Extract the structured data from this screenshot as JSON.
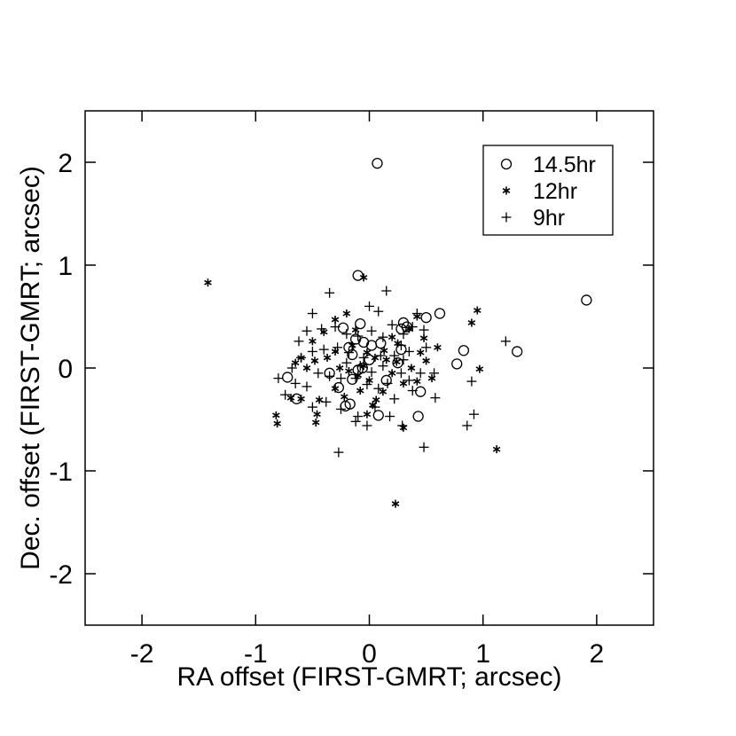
{
  "chart_data": {
    "type": "scatter",
    "xlabel": "RA offset (FIRST-GMRT; arcsec)",
    "ylabel": "Dec. offset (FIRST-GMRT; arcsec)",
    "xlim": [
      -2.5,
      2.5
    ],
    "ylim": [
      -2.5,
      2.5
    ],
    "xticks": [
      -2,
      -1,
      0,
      1,
      2
    ],
    "yticks": [
      -2,
      -1,
      0,
      1,
      2
    ],
    "xtick_labels": [
      "-2",
      "-1",
      "0",
      "1",
      "2"
    ],
    "ytick_labels": [
      "-2",
      "-1",
      "0",
      "1",
      "2"
    ],
    "grid": false,
    "legend_position": "top-right",
    "series": [
      {
        "name": "14.5hr",
        "marker": "circle",
        "points": [
          [
            0.07,
            1.99
          ],
          [
            -0.1,
            0.9
          ],
          [
            1.91,
            0.66
          ],
          [
            0.62,
            0.53
          ],
          [
            0.5,
            0.49
          ],
          [
            0.3,
            0.44
          ],
          [
            0.28,
            0.38
          ],
          [
            0.33,
            0.4
          ],
          [
            -0.23,
            0.39
          ],
          [
            -0.08,
            0.43
          ],
          [
            1.3,
            0.16
          ],
          [
            0.83,
            0.17
          ],
          [
            0.77,
            0.04
          ],
          [
            0.28,
            0.18
          ],
          [
            0.25,
            0.05
          ],
          [
            0.1,
            0.24
          ],
          [
            0.02,
            0.22
          ],
          [
            -0.05,
            0.25
          ],
          [
            -0.12,
            0.28
          ],
          [
            -0.18,
            0.2
          ],
          [
            -0.15,
            0.13
          ],
          [
            -0.06,
            0.0
          ],
          [
            -0.1,
            -0.02
          ],
          [
            -0.35,
            -0.05
          ],
          [
            -0.72,
            -0.09
          ],
          [
            -0.64,
            -0.3
          ],
          [
            -0.27,
            -0.19
          ],
          [
            -0.15,
            -0.11
          ],
          [
            -0.17,
            -0.35
          ],
          [
            -0.21,
            -0.37
          ],
          [
            0.08,
            -0.46
          ],
          [
            0.43,
            -0.47
          ],
          [
            0.45,
            -0.23
          ],
          [
            0.15,
            -0.12
          ],
          [
            0.0,
            0.08
          ]
        ]
      },
      {
        "name": "12hr",
        "marker": "asterisk",
        "points": [
          [
            -1.42,
            0.83
          ],
          [
            -0.05,
            0.88
          ],
          [
            0.95,
            0.56
          ],
          [
            0.9,
            0.44
          ],
          [
            0.48,
            0.29
          ],
          [
            0.42,
            0.5
          ],
          [
            0.35,
            0.38
          ],
          [
            0.2,
            0.3
          ],
          [
            0.13,
            0.17
          ],
          [
            -0.02,
            0.15
          ],
          [
            -0.12,
            0.37
          ],
          [
            -0.2,
            0.53
          ],
          [
            -0.3,
            0.47
          ],
          [
            -0.4,
            0.35
          ],
          [
            -0.5,
            0.26
          ],
          [
            -0.6,
            0.1
          ],
          [
            -0.48,
            0.07
          ],
          [
            -0.37,
            0.1
          ],
          [
            -0.26,
            0.0
          ],
          [
            -0.18,
            -0.03
          ],
          [
            -0.1,
            -0.07
          ],
          [
            -0.05,
            0.02
          ],
          [
            0.05,
            0.1
          ],
          [
            0.15,
            0.08
          ],
          [
            0.24,
            0.06
          ],
          [
            0.37,
            0.0
          ],
          [
            0.5,
            0.07
          ],
          [
            0.97,
            -0.01
          ],
          [
            0.42,
            -0.13
          ],
          [
            0.3,
            -0.15
          ],
          [
            0.12,
            -0.23
          ],
          [
            0.06,
            -0.31
          ],
          [
            0.03,
            -0.36
          ],
          [
            -0.08,
            -0.22
          ],
          [
            -0.22,
            -0.28
          ],
          [
            -0.3,
            -0.2
          ],
          [
            -0.44,
            -0.31
          ],
          [
            -0.46,
            -0.45
          ],
          [
            -0.47,
            -0.53
          ],
          [
            -0.6,
            -0.3
          ],
          [
            -0.69,
            -0.29
          ],
          [
            -0.82,
            -0.46
          ],
          [
            -0.81,
            -0.54
          ],
          [
            -0.65,
            0.05
          ],
          [
            -0.55,
            0.0
          ],
          [
            -0.3,
            0.16
          ],
          [
            -0.15,
            0.22
          ],
          [
            0.25,
            0.24
          ],
          [
            0.45,
            0.15
          ],
          [
            0.3,
            -0.58
          ],
          [
            0.23,
            -1.32
          ],
          [
            1.12,
            -0.79
          ],
          [
            0.0,
            -0.12
          ],
          [
            0.2,
            -0.05
          ],
          [
            -0.02,
            -0.45
          ],
          [
            0.55,
            -0.1
          ],
          [
            0.6,
            0.2
          ]
        ]
      },
      {
        "name": "9hr",
        "marker": "plus",
        "points": [
          [
            0.15,
            0.75
          ],
          [
            -0.35,
            0.73
          ],
          [
            0.0,
            0.6
          ],
          [
            0.08,
            0.55
          ],
          [
            0.42,
            0.53
          ],
          [
            -0.5,
            0.53
          ],
          [
            -0.55,
            0.36
          ],
          [
            -0.62,
            0.26
          ],
          [
            -0.3,
            0.4
          ],
          [
            -0.2,
            0.33
          ],
          [
            -0.1,
            0.31
          ],
          [
            0.02,
            0.36
          ],
          [
            0.2,
            0.42
          ],
          [
            0.3,
            0.33
          ],
          [
            0.38,
            0.4
          ],
          [
            0.48,
            0.37
          ],
          [
            1.2,
            0.26
          ],
          [
            0.5,
            0.2
          ],
          [
            0.35,
            0.16
          ],
          [
            0.22,
            0.12
          ],
          [
            0.1,
            0.12
          ],
          [
            -0.05,
            0.1
          ],
          [
            -0.18,
            0.15
          ],
          [
            -0.28,
            0.2
          ],
          [
            -0.4,
            0.18
          ],
          [
            -0.5,
            0.16
          ],
          [
            -0.6,
            0.1
          ],
          [
            -0.68,
            0.0
          ],
          [
            -0.8,
            -0.1
          ],
          [
            -0.74,
            -0.26
          ],
          [
            -0.65,
            -0.15
          ],
          [
            -0.55,
            -0.18
          ],
          [
            -0.45,
            -0.05
          ],
          [
            -0.35,
            -0.08
          ],
          [
            -0.25,
            -0.1
          ],
          [
            -0.12,
            -0.1
          ],
          [
            -0.02,
            -0.16
          ],
          [
            0.08,
            -0.2
          ],
          [
            0.16,
            -0.15
          ],
          [
            0.28,
            -0.05
          ],
          [
            0.35,
            -0.12
          ],
          [
            0.45,
            -0.05
          ],
          [
            0.57,
            -0.05
          ],
          [
            0.58,
            -0.29
          ],
          [
            0.9,
            -0.13
          ],
          [
            0.92,
            -0.45
          ],
          [
            0.86,
            -0.56
          ],
          [
            0.48,
            -0.77
          ],
          [
            0.29,
            -0.56
          ],
          [
            0.18,
            -0.47
          ],
          [
            0.05,
            -0.38
          ],
          [
            -0.02,
            -0.56
          ],
          [
            -0.1,
            -0.47
          ],
          [
            -0.25,
            -0.4
          ],
          [
            -0.38,
            -0.33
          ],
          [
            -0.5,
            -0.38
          ],
          [
            -0.27,
            -0.82
          ],
          [
            -0.12,
            -0.52
          ],
          [
            0.22,
            -0.3
          ],
          [
            0.38,
            -0.22
          ],
          [
            0.12,
            0.02
          ],
          [
            0.02,
            -0.04
          ],
          [
            -0.08,
            0.02
          ],
          [
            -0.2,
            0.05
          ],
          [
            0.3,
            0.08
          ],
          [
            -0.42,
            0.38
          ],
          [
            0.12,
            0.3
          ],
          [
            0.28,
            0.22
          ]
        ]
      }
    ]
  }
}
